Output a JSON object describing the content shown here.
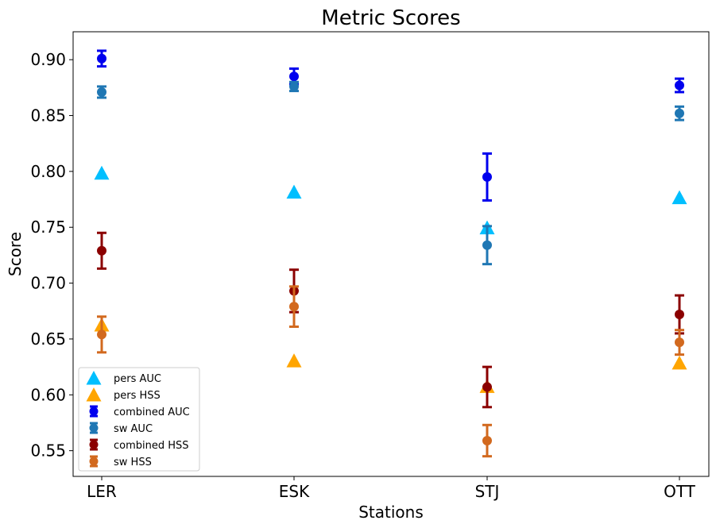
{
  "chart_data": {
    "type": "scatter",
    "title": "Metric Scores",
    "xlabel": "Stations",
    "ylabel": "Score",
    "categories": [
      "LER",
      "ESK",
      "STJ",
      "OTT"
    ],
    "ylim": [
      0.527,
      0.925
    ],
    "yticks": [
      "0.55",
      "0.60",
      "0.65",
      "0.70",
      "0.75",
      "0.80",
      "0.85",
      "0.90"
    ],
    "grid": false,
    "legend_position": "lower-left",
    "series": [
      {
        "name": "pers AUC",
        "marker": "triangle",
        "color": "#00bfff",
        "values": [
          0.798,
          0.781,
          0.749,
          0.776
        ]
      },
      {
        "name": "pers HSS",
        "marker": "triangle",
        "color": "#ffa500",
        "values": [
          0.662,
          0.63,
          0.607,
          0.628
        ]
      },
      {
        "name": "combined AUC",
        "marker": "circle",
        "color": "#0000ee",
        "values": [
          0.901,
          0.885,
          0.795,
          0.877
        ],
        "errors": [
          0.007,
          0.007,
          0.021,
          0.006
        ]
      },
      {
        "name": "sw AUC",
        "marker": "circle",
        "color": "#1f77b4",
        "values": [
          0.871,
          0.876,
          0.734,
          0.852
        ],
        "errors": [
          0.005,
          0.004,
          0.017,
          0.006
        ]
      },
      {
        "name": "combined HSS",
        "marker": "circle",
        "color": "#8b0000",
        "values": [
          0.729,
          0.693,
          0.607,
          0.672
        ],
        "errors": [
          0.016,
          0.019,
          0.018,
          0.017
        ]
      },
      {
        "name": "sw HSS",
        "marker": "circle",
        "color": "#d2691e",
        "values": [
          0.654,
          0.679,
          0.559,
          0.647
        ],
        "errors": [
          0.016,
          0.018,
          0.014,
          0.011
        ]
      }
    ]
  }
}
